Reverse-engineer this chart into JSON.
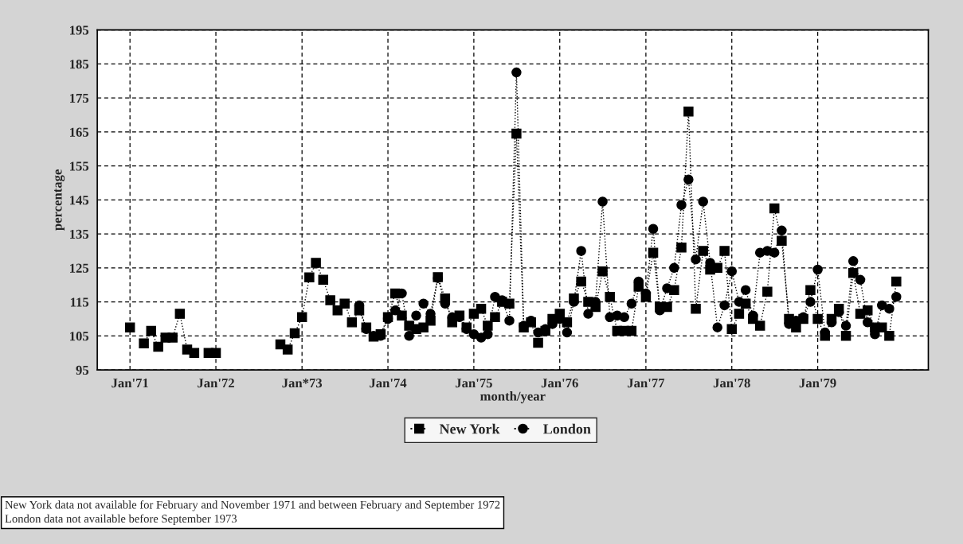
{
  "chart_data": {
    "type": "line",
    "xlabel": "month/year",
    "ylabel": "percentage",
    "x": [
      "1971-01",
      "1971-02",
      "1971-03",
      "1971-04",
      "1971-05",
      "1971-06",
      "1971-07",
      "1971-08",
      "1971-09",
      "1971-10",
      "1971-11",
      "1971-12",
      "1972-01",
      "1972-02",
      "1972-03",
      "1972-04",
      "1972-05",
      "1972-06",
      "1972-07",
      "1972-08",
      "1972-09",
      "1972-10",
      "1972-11",
      "1972-12",
      "1973-01",
      "1973-02",
      "1973-03",
      "1973-04",
      "1973-05",
      "1973-06",
      "1973-07",
      "1973-08",
      "1973-09",
      "1973-10",
      "1973-11",
      "1973-12",
      "1974-01",
      "1974-02",
      "1974-03",
      "1974-04",
      "1974-05",
      "1974-06",
      "1974-07",
      "1974-08",
      "1974-09",
      "1974-10",
      "1974-11",
      "1974-12",
      "1975-01",
      "1975-02",
      "1975-03",
      "1975-04",
      "1975-05",
      "1975-06",
      "1975-07",
      "1975-08",
      "1975-09",
      "1975-10",
      "1975-11",
      "1975-12",
      "1976-01",
      "1976-02",
      "1976-03",
      "1976-04",
      "1976-05",
      "1976-06",
      "1976-07",
      "1976-08",
      "1976-09",
      "1976-10",
      "1976-11",
      "1976-12",
      "1977-01",
      "1977-02",
      "1977-03",
      "1977-04",
      "1977-05",
      "1977-06",
      "1977-07",
      "1977-08",
      "1977-09",
      "1977-10",
      "1977-11",
      "1977-12",
      "1978-01",
      "1978-02",
      "1978-03",
      "1978-04",
      "1978-05",
      "1978-06",
      "1978-07",
      "1978-08",
      "1978-09",
      "1978-10",
      "1978-11",
      "1978-12",
      "1979-01",
      "1979-02",
      "1979-03",
      "1979-04",
      "1979-05",
      "1979-06",
      "1979-07",
      "1979-08",
      "1979-09",
      "1979-10",
      "1979-11",
      "1979-12"
    ],
    "series": [
      {
        "name": "New York",
        "color": "#000000",
        "marker": "square",
        "values": [
          107.5,
          null,
          102.8,
          106.5,
          101.8,
          104.5,
          104.5,
          111.5,
          101,
          100,
          null,
          100,
          100,
          null,
          null,
          null,
          null,
          null,
          null,
          null,
          null,
          102.5,
          101,
          105.8,
          110.5,
          122.2,
          126.5,
          121.5,
          115.5,
          112.5,
          114.5,
          109,
          112.5,
          107.5,
          104.8,
          105.5,
          110.5,
          117.5,
          111,
          108,
          107,
          107.5,
          109.5,
          122.3,
          116,
          109,
          111,
          107.5,
          111.5,
          113,
          108,
          110.5,
          115,
          114.5,
          164.5,
          107.5,
          109,
          103,
          106.5,
          110,
          111.5,
          109,
          116,
          121,
          115,
          113.5,
          124,
          116.5,
          106.5,
          106.5,
          106.5,
          119.5,
          116.5,
          129.5,
          113.5,
          113.5,
          118.5,
          131,
          171,
          113,
          130,
          124.5,
          125,
          130,
          107,
          111.5,
          114.5,
          110,
          108,
          118,
          142.5,
          133,
          110,
          107.5,
          110,
          118.5,
          110,
          105,
          110,
          113,
          105,
          123.5,
          111.5,
          112.5,
          107.5,
          107.5,
          105,
          121
        ]
      },
      {
        "name": "London",
        "color": "#000000",
        "marker": "circle",
        "values": [
          null,
          null,
          null,
          null,
          null,
          null,
          null,
          null,
          null,
          null,
          null,
          null,
          null,
          null,
          null,
          null,
          null,
          null,
          null,
          null,
          null,
          null,
          null,
          null,
          null,
          null,
          null,
          null,
          null,
          null,
          null,
          null,
          114,
          107,
          105,
          105,
          110,
          112.5,
          117.5,
          105,
          111,
          114.5,
          111.5,
          122,
          114.5,
          110.5,
          110.5,
          107,
          105.5,
          104.5,
          105.5,
          116.5,
          115.5,
          109.5,
          182.5,
          108,
          109.5,
          106,
          107,
          108.5,
          110,
          106,
          115,
          130,
          111.5,
          115,
          144.5,
          110.5,
          111,
          110.5,
          114.5,
          121,
          117.5,
          136.5,
          112.5,
          119,
          125,
          143.5,
          151,
          127.5,
          144.5,
          126.5,
          107.5,
          114,
          124,
          115,
          118.5,
          111,
          129.5,
          130,
          129.5,
          136,
          108.5,
          109.5,
          110.5,
          115,
          124.5,
          106,
          109,
          112,
          108,
          127,
          121.5,
          109,
          105.5,
          114,
          113,
          116.5
        ]
      }
    ],
    "xlim": [
      "1970-08-15",
      "1980-04-15"
    ],
    "xticks": [
      {
        "value": "1971-01",
        "label": "Jan'71"
      },
      {
        "value": "1972-01",
        "label": "Jan'72"
      },
      {
        "value": "1973-01",
        "label": "Jan*73"
      },
      {
        "value": "1974-01",
        "label": "Jan'74"
      },
      {
        "value": "1975-01",
        "label": "Jan'75"
      },
      {
        "value": "1976-01",
        "label": "Jan'76"
      },
      {
        "value": "1977-01",
        "label": "Jan'77"
      },
      {
        "value": "1978-01",
        "label": "Jan'78"
      },
      {
        "value": "1979-01",
        "label": "Jan'79"
      }
    ],
    "ylim": [
      95,
      195
    ],
    "yticks": [
      95,
      105,
      115,
      125,
      135,
      145,
      155,
      165,
      175,
      185,
      195
    ],
    "grid": true,
    "legend": "bottom",
    "line_style": "dotted",
    "annotations": [
      "New York data not available for February and November 1971 and between February and September 1972",
      "London data not available before September 1973"
    ]
  }
}
